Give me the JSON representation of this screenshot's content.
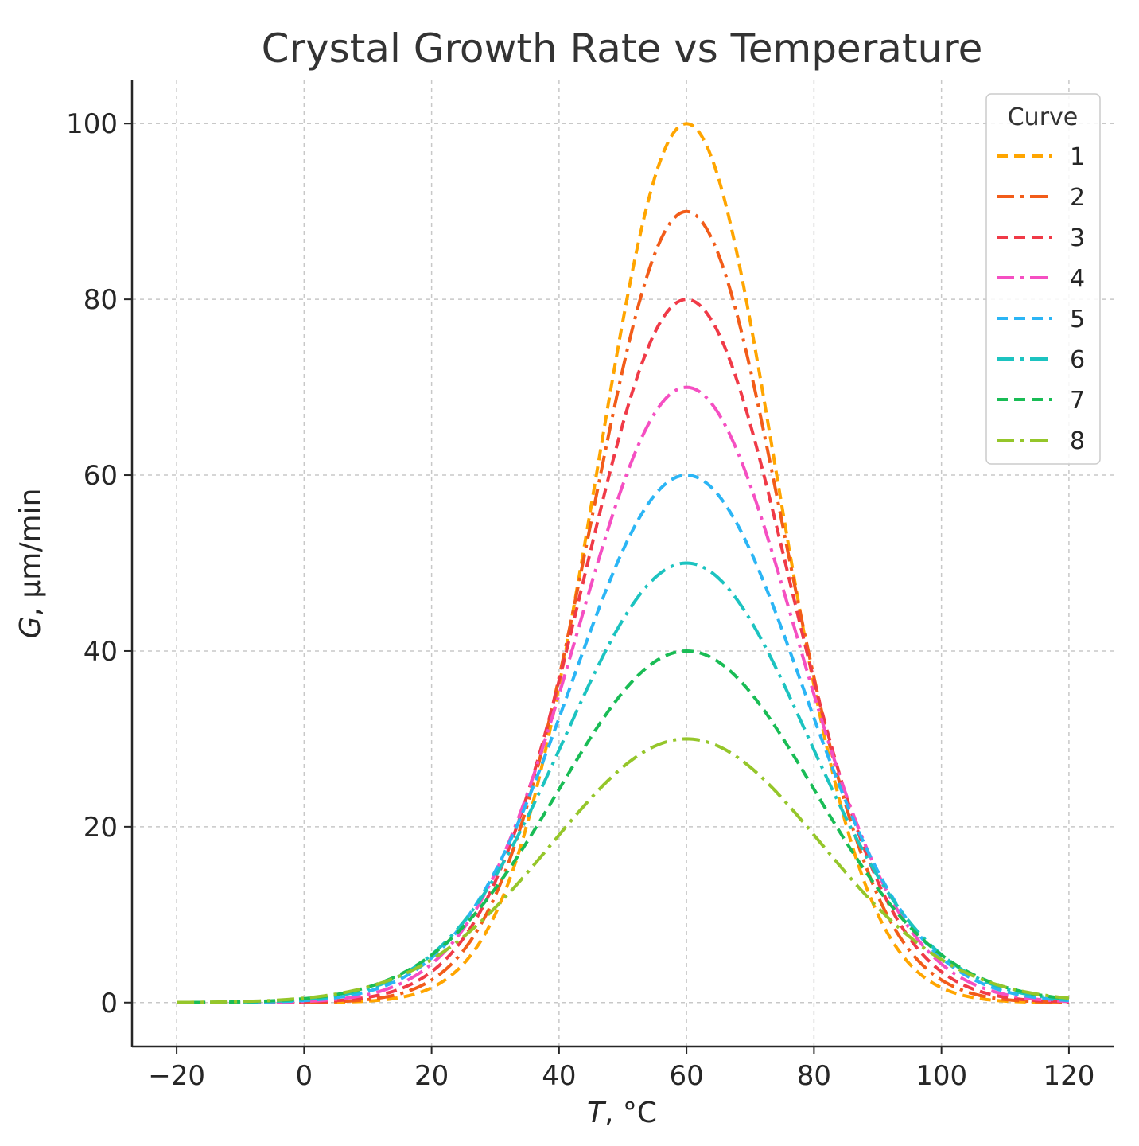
{
  "chart_data": {
    "type": "line",
    "title": "Crystal Growth Rate vs Temperature",
    "xlabel_var": "T",
    "xlabel_unit": ", °C",
    "ylabel_var": "G",
    "ylabel_unit": ", μm/min",
    "xlim": [
      -27,
      127
    ],
    "ylim": [
      -5,
      105
    ],
    "x_ticks": [
      -20,
      0,
      20,
      40,
      60,
      80,
      100,
      120
    ],
    "x_tick_labels": [
      "−20",
      "0",
      "20",
      "40",
      "60",
      "80",
      "100",
      "120"
    ],
    "y_ticks": [
      0,
      20,
      40,
      60,
      80,
      100
    ],
    "y_tick_labels": [
      "0",
      "20",
      "40",
      "60",
      "80",
      "100"
    ],
    "grid": true,
    "legend": {
      "title": "Curve",
      "position": "top-right"
    },
    "x_range": [
      -20,
      120
    ],
    "peak_temperature": 60,
    "series": [
      {
        "name": "1",
        "peak": 100,
        "width": 14,
        "color": "#ffa500",
        "style": "dashed"
      },
      {
        "name": "2",
        "peak": 90,
        "width": 15,
        "color": "#f25c19",
        "style": "dashdot"
      },
      {
        "name": "3",
        "peak": 80,
        "width": 16,
        "color": "#f03a47",
        "style": "dashed"
      },
      {
        "name": "4",
        "peak": 70,
        "width": 17,
        "color": "#f54fc2",
        "style": "dashdot"
      },
      {
        "name": "5",
        "peak": 60,
        "width": 18,
        "color": "#2bb5f5",
        "style": "dashed"
      },
      {
        "name": "6",
        "peak": 50,
        "width": 19,
        "color": "#1cc3c0",
        "style": "dashdot"
      },
      {
        "name": "7",
        "peak": 40,
        "width": 20,
        "color": "#19bc55",
        "style": "dashed"
      },
      {
        "name": "8",
        "peak": 30,
        "width": 21,
        "color": "#95c62a",
        "style": "dashdot"
      }
    ]
  }
}
